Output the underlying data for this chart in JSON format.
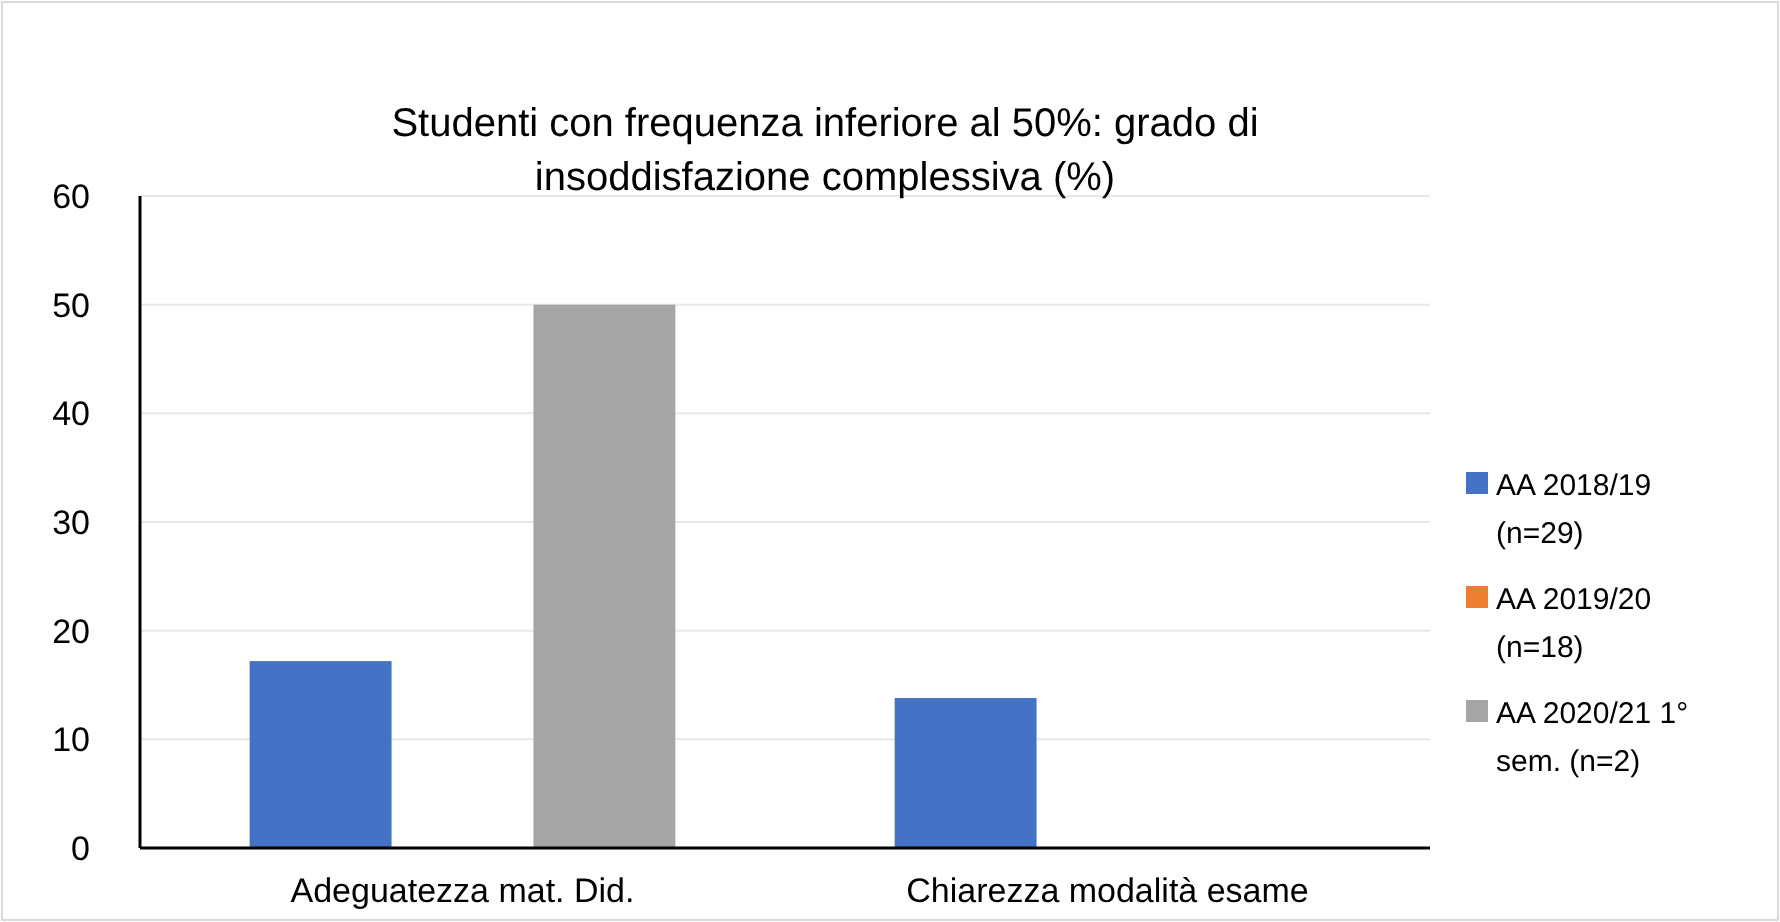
{
  "chart_data": {
    "type": "bar",
    "title": "Studenti con frequenza inferiore al 50%: grado di insoddisfazione complessiva (%)",
    "categories": [
      "Adeguatezza mat. Did.",
      "Chiarezza modalità esame"
    ],
    "series": [
      {
        "name": "AA 2018/19 (n=29)",
        "color": "#4472c4",
        "values": [
          17.2,
          13.8
        ]
      },
      {
        "name": "AA 2019/20 (n=18)",
        "color": "#ed7d31",
        "values": [
          0,
          0
        ]
      },
      {
        "name": "AA 2020/21 1° sem. (n=2)",
        "color": "#a5a5a5",
        "values": [
          50,
          0
        ]
      }
    ],
    "ylim": [
      0,
      60
    ],
    "yticks": [
      0,
      10,
      20,
      30,
      40,
      50,
      60
    ],
    "grid": "y",
    "legend": "right"
  }
}
